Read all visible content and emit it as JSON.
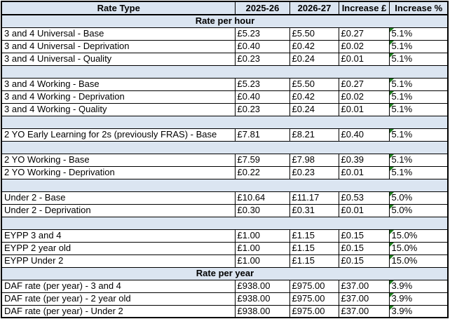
{
  "colors": {
    "band_fill": "#dbe5f1",
    "grid_line": "#000000",
    "error_indicator_green": "#1e7d1e",
    "row_fill": "#ffffff",
    "text": "#000000"
  },
  "table": {
    "columns": [
      "Rate Type",
      "2025-26",
      "2026-27",
      "Increase £",
      "Increase %"
    ],
    "rows": [
      {
        "type": "section",
        "label": "Rate per hour"
      },
      {
        "type": "data",
        "label": "3 and 4 Universal - Base",
        "y1": "£5.23",
        "y2": "£5.50",
        "inc": "£0.27",
        "pct": "5.1%",
        "error_indicator": true
      },
      {
        "type": "data",
        "label": "3 and 4 Universal - Deprivation",
        "y1": "£0.40",
        "y2": "£0.42",
        "inc": "£0.02",
        "pct": "5.1%",
        "error_indicator": true
      },
      {
        "type": "data",
        "label": "3 and 4 Universal - Quality",
        "y1": "£0.23",
        "y2": "£0.24",
        "inc": "£0.01",
        "pct": "5.1%",
        "error_indicator": true
      },
      {
        "type": "spacer"
      },
      {
        "type": "data",
        "label": "3 and 4 Working - Base",
        "y1": "£5.23",
        "y2": "£5.50",
        "inc": "£0.27",
        "pct": "5.1%",
        "error_indicator": true
      },
      {
        "type": "data",
        "label": "3 and 4 Working - Deprivation",
        "y1": "£0.40",
        "y2": "£0.42",
        "inc": "£0.02",
        "pct": "5.1%",
        "error_indicator": true
      },
      {
        "type": "data",
        "label": "3 and 4 Working - Quality",
        "y1": "£0.23",
        "y2": "£0.24",
        "inc": "£0.01",
        "pct": "5.1%",
        "error_indicator": true
      },
      {
        "type": "spacer"
      },
      {
        "type": "data",
        "label": "2 YO Early Learning for 2s (previously FRAS) - Base",
        "y1": "£7.81",
        "y2": "£8.21",
        "inc": "£0.40",
        "pct": "5.1%",
        "error_indicator": true
      },
      {
        "type": "spacer"
      },
      {
        "type": "data",
        "label": "2 YO Working - Base",
        "y1": "£7.59",
        "y2": "£7.98",
        "inc": "£0.39",
        "pct": "5.1%",
        "error_indicator": true
      },
      {
        "type": "data",
        "label": "2 YO Working - Deprivation",
        "y1": "£0.22",
        "y2": "£0.23",
        "inc": "£0.01",
        "pct": "5.1%",
        "error_indicator": true
      },
      {
        "type": "spacer"
      },
      {
        "type": "data",
        "label": "Under 2 - Base",
        "y1": "£10.64",
        "y2": "£11.17",
        "inc": "£0.53",
        "pct": "5.0%",
        "error_indicator": true
      },
      {
        "type": "data",
        "label": "Under 2 - Deprivation",
        "y1": "£0.30",
        "y2": "£0.31",
        "inc": "£0.01",
        "pct": "5.0%",
        "error_indicator": true
      },
      {
        "type": "spacer"
      },
      {
        "type": "data",
        "label": "EYPP 3 and 4",
        "y1": "£1.00",
        "y2": "£1.15",
        "inc": "£0.15",
        "pct": "15.0%",
        "error_indicator": true
      },
      {
        "type": "data",
        "label": "EYPP 2 year old",
        "y1": "£1.00",
        "y2": "£1.15",
        "inc": "£0.15",
        "pct": "15.0%",
        "error_indicator": true
      },
      {
        "type": "data",
        "label": "EYPP Under 2",
        "y1": "£1.00",
        "y2": "£1.15",
        "inc": "£0.15",
        "pct": "15.0%",
        "error_indicator": true
      },
      {
        "type": "section",
        "label": "Rate per year"
      },
      {
        "type": "data",
        "label": "DAF rate (per year) - 3 and 4",
        "y1": "£938.00",
        "y2": "£975.00",
        "inc": "£37.00",
        "pct": "3.9%",
        "error_indicator": true
      },
      {
        "type": "data",
        "label": "DAF rate (per year) - 2 year old",
        "y1": "£938.00",
        "y2": "£975.00",
        "inc": "£37.00",
        "pct": "3.9%",
        "error_indicator": true
      },
      {
        "type": "data",
        "label": "DAF rate (per year) - Under 2",
        "y1": "£938.00",
        "y2": "£975.00",
        "inc": "£37.00",
        "pct": "3.9%",
        "error_indicator": true
      }
    ]
  }
}
